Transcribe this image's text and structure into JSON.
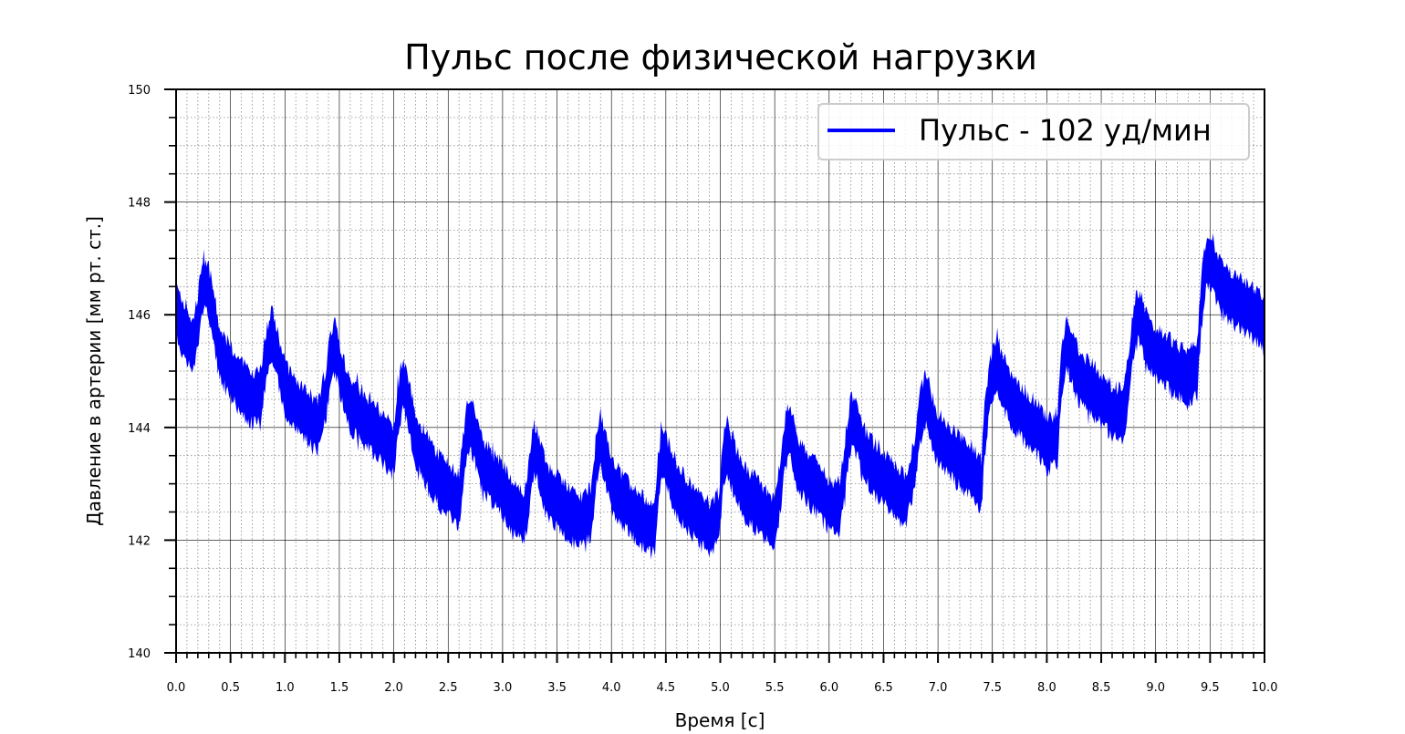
{
  "chart_data": {
    "type": "line",
    "title": "Пульс после физической нагрузки",
    "xlabel": "Время [c]",
    "ylabel": "Давление в артерии [мм рт. ст.]",
    "xlim": [
      0,
      10
    ],
    "ylim": [
      140,
      150
    ],
    "x_ticks": [
      "0.0",
      "0.5",
      "1.0",
      "1.5",
      "2.0",
      "2.5",
      "3.0",
      "3.5",
      "4.0",
      "4.5",
      "5.0",
      "5.5",
      "6.0",
      "6.5",
      "7.0",
      "7.5",
      "8.0",
      "8.5",
      "9.0",
      "9.5",
      "10.0"
    ],
    "y_ticks": [
      "140",
      "142",
      "144",
      "146",
      "148",
      "150"
    ],
    "grid": true,
    "legend_position": "top-right",
    "series": [
      {
        "name": "Пульс - 102 уд/мин",
        "color": "#0000ff",
        "noise_band": 0.45,
        "x": [
          0.0,
          0.05,
          0.1,
          0.15,
          0.2,
          0.25,
          0.3,
          0.35,
          0.4,
          0.5,
          0.6,
          0.7,
          0.78,
          0.82,
          0.88,
          0.93,
          1.0,
          1.1,
          1.2,
          1.3,
          1.38,
          1.42,
          1.47,
          1.52,
          1.6,
          1.7,
          1.8,
          1.9,
          2.0,
          2.04,
          2.08,
          2.13,
          2.2,
          2.3,
          2.4,
          2.5,
          2.6,
          2.64,
          2.68,
          2.72,
          2.8,
          2.9,
          3.0,
          3.1,
          3.2,
          3.24,
          3.28,
          3.32,
          3.4,
          3.5,
          3.6,
          3.7,
          3.82,
          3.86,
          3.9,
          3.95,
          4.0,
          4.1,
          4.2,
          4.3,
          4.4,
          4.43,
          4.47,
          4.52,
          4.6,
          4.7,
          4.8,
          4.9,
          4.99,
          5.02,
          5.06,
          5.1,
          5.2,
          5.3,
          5.4,
          5.5,
          5.56,
          5.6,
          5.65,
          5.7,
          5.8,
          5.9,
          6.0,
          6.1,
          6.16,
          6.2,
          6.25,
          6.3,
          6.4,
          6.5,
          6.6,
          6.7,
          6.78,
          6.83,
          6.88,
          6.95,
          7.0,
          7.1,
          7.2,
          7.3,
          7.4,
          7.43,
          7.48,
          7.55,
          7.6,
          7.7,
          7.8,
          7.9,
          8.0,
          8.1,
          8.13,
          8.18,
          8.22,
          8.3,
          8.4,
          8.5,
          8.6,
          8.7,
          8.75,
          8.79,
          8.84,
          8.9,
          9.0,
          9.1,
          9.2,
          9.3,
          9.38,
          9.42,
          9.46,
          9.52,
          9.6,
          9.7,
          9.8,
          9.9,
          10.0
        ],
        "y": [
          146.1,
          145.7,
          145.7,
          145.4,
          145.9,
          146.6,
          146.4,
          145.9,
          145.3,
          145.0,
          144.7,
          144.5,
          144.6,
          145.2,
          145.7,
          145.3,
          144.7,
          144.4,
          144.2,
          144.0,
          144.6,
          145.3,
          145.4,
          144.9,
          144.4,
          144.2,
          144.0,
          143.8,
          143.6,
          144.3,
          144.8,
          144.5,
          143.8,
          143.4,
          143.1,
          142.9,
          142.7,
          143.4,
          144.1,
          144.0,
          143.4,
          143.1,
          142.9,
          142.6,
          142.4,
          142.9,
          143.6,
          143.5,
          142.9,
          142.7,
          142.5,
          142.3,
          142.5,
          143.4,
          143.8,
          143.4,
          143.0,
          142.7,
          142.5,
          142.3,
          142.2,
          143.1,
          143.6,
          143.3,
          142.9,
          142.6,
          142.4,
          142.2,
          142.4,
          143.3,
          143.7,
          143.4,
          142.9,
          142.7,
          142.5,
          142.3,
          143.1,
          143.8,
          143.9,
          143.4,
          143.1,
          142.9,
          142.6,
          142.6,
          143.5,
          144.1,
          144.0,
          143.6,
          143.3,
          143.1,
          142.9,
          142.7,
          143.3,
          144.1,
          144.5,
          144.1,
          143.8,
          143.6,
          143.4,
          143.2,
          143.0,
          144.0,
          144.8,
          145.1,
          144.8,
          144.4,
          144.2,
          144.0,
          143.7,
          143.8,
          144.9,
          145.5,
          145.3,
          144.9,
          144.7,
          144.5,
          144.3,
          144.2,
          144.8,
          145.6,
          146.0,
          145.7,
          145.3,
          145.2,
          145.0,
          144.9,
          145.0,
          146.2,
          146.9,
          146.9,
          146.5,
          146.3,
          146.2,
          146.0,
          145.8
        ]
      }
    ]
  }
}
